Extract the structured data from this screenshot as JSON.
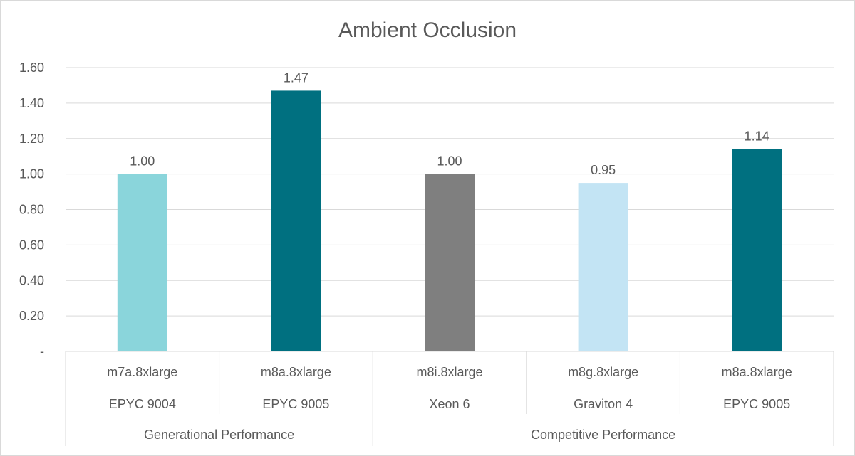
{
  "chart_data": {
    "type": "bar",
    "title": "Ambient Occlusion",
    "xlabel": "",
    "ylabel": "",
    "ylim": [
      0,
      1.6
    ],
    "y_ticks": [
      "-",
      "0.20",
      "0.40",
      "0.60",
      "0.80",
      "1.00",
      "1.20",
      "1.40",
      "1.60"
    ],
    "grid": true,
    "legend": "none",
    "categories": [
      {
        "instance": "m7a.8xlarge",
        "cpu": "EPYC 9004",
        "group": "Generational Performance",
        "value": 1.0,
        "label": "1.00",
        "color": "#8AD5DB"
      },
      {
        "instance": "m8a.8xlarge",
        "cpu": "EPYC 9005",
        "group": "Generational Performance",
        "value": 1.47,
        "label": "1.47",
        "color": "#007080"
      },
      {
        "instance": "m8i.8xlarge",
        "cpu": "Xeon 6",
        "group": "Competitive Performance",
        "value": 1.0,
        "label": "1.00",
        "color": "#7F7F7F"
      },
      {
        "instance": "m8g.8xlarge",
        "cpu": "Graviton 4",
        "group": "Competitive Performance",
        "value": 0.95,
        "label": "0.95",
        "color": "#C3E4F4"
      },
      {
        "instance": "m8a.8xlarge",
        "cpu": "EPYC 9005",
        "group": "Competitive Performance",
        "value": 1.14,
        "label": "1.14",
        "color": "#007080"
      }
    ],
    "groups": [
      "Generational Performance",
      "Competitive Performance"
    ]
  }
}
